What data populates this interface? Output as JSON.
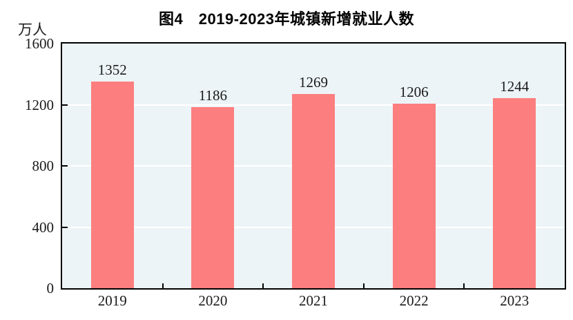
{
  "chart_data": {
    "type": "bar",
    "title": "图4　2019-2023年城镇新增就业人数",
    "categories": [
      "2019",
      "2020",
      "2021",
      "2022",
      "2023"
    ],
    "values": [
      1352,
      1186,
      1269,
      1206,
      1244
    ],
    "xlabel": "",
    "ylabel": "万人",
    "ylim": [
      0,
      1600
    ],
    "yticks": [
      0,
      400,
      800,
      1200,
      1600
    ],
    "grid": true,
    "legend": "none",
    "value_labels_shown": true,
    "colors": {
      "bar": "#FC7E7E",
      "plot_background": "#EDF4F8",
      "gridline": "#FFFFFF",
      "axis_frame": "#000000",
      "text": "#1A1A1A",
      "page_background": "#FFFFFF"
    }
  }
}
